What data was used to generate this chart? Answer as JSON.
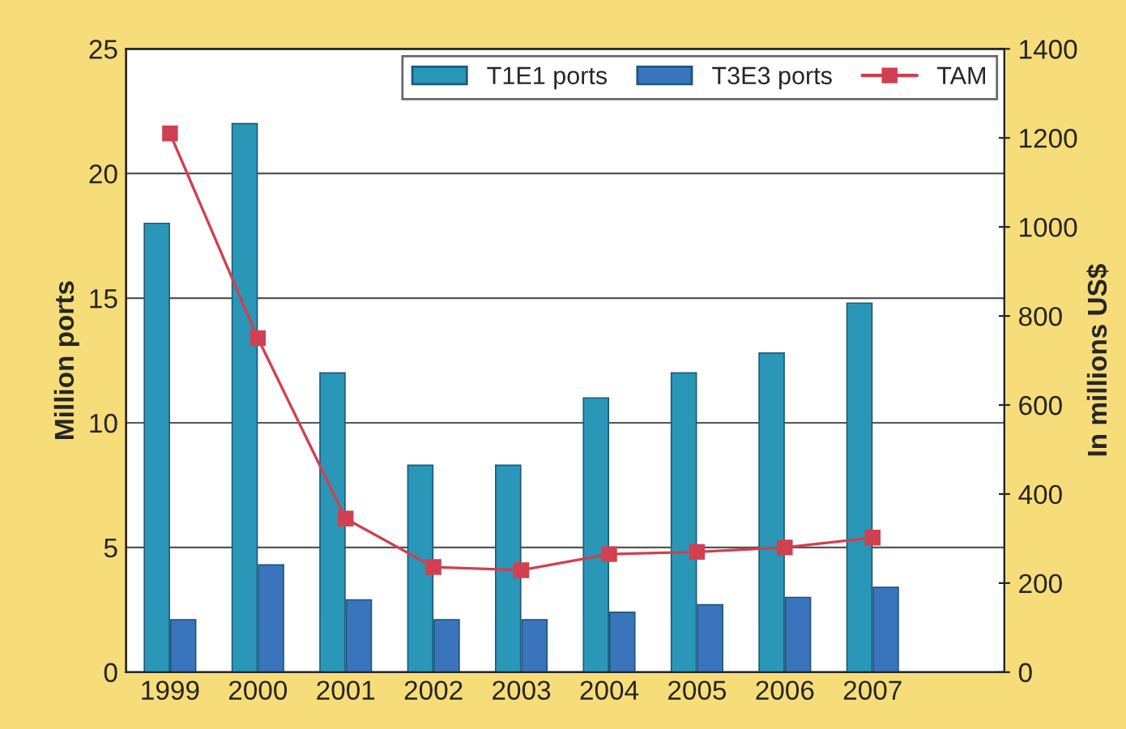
{
  "chart_data": {
    "type": "bar",
    "ylabel": "Million ports",
    "y2label": "In millions US$",
    "categories": [
      "1999",
      "2000",
      "2001",
      "2002",
      "2003",
      "2004",
      "2005",
      "2006",
      "2007",
      null
    ],
    "series": [
      {
        "name": "T1E1 ports",
        "color": "#2a97b8",
        "values": [
          18.0,
          22.0,
          12.0,
          8.3,
          8.3,
          11.0,
          12.0,
          12.8,
          14.8,
          null
        ]
      },
      {
        "name": "T3E3 ports",
        "color": "#3a74bd",
        "values": [
          2.1,
          4.3,
          2.9,
          2.1,
          2.1,
          2.4,
          2.7,
          3.0,
          3.4,
          null
        ]
      },
      {
        "name": "TAM",
        "type": "line",
        "axis": "y2",
        "color": "#d04050",
        "marker": "square",
        "values": [
          1210,
          750,
          345,
          236,
          229,
          265,
          270,
          280,
          302,
          null
        ]
      }
    ],
    "ylim": [
      0,
      25
    ],
    "yticks": [
      0,
      5,
      10,
      15,
      20,
      25
    ],
    "y2lim": [
      0,
      1400
    ],
    "y2ticks": [
      0,
      200,
      400,
      600,
      800,
      1000,
      1200,
      1400
    ],
    "grid": "y",
    "legend": "top right"
  }
}
